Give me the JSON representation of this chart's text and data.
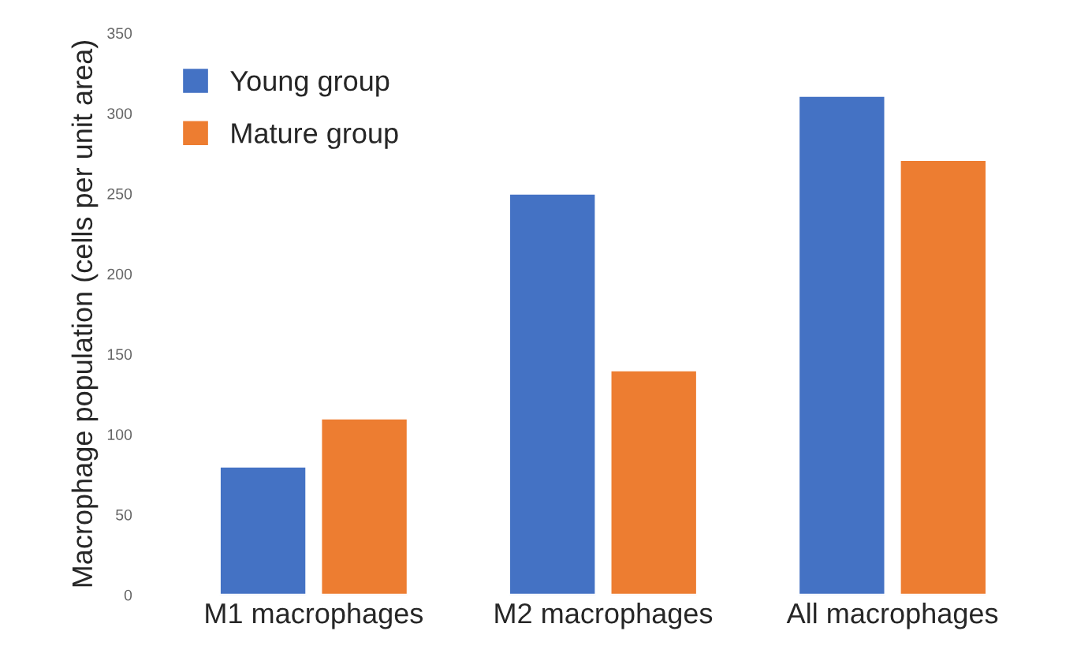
{
  "chart_data": {
    "type": "bar",
    "ylabel": "Macrophage population (cells per unit area)",
    "categories": [
      "M1 macrophages",
      "M2 macrophages",
      "All macrophages"
    ],
    "series": [
      {
        "name": "Young group",
        "color": "#4472c4",
        "values": [
          80,
          250,
          311
        ]
      },
      {
        "name": "Mature group",
        "color": "#ed7d31",
        "values": [
          110,
          140,
          271
        ]
      }
    ],
    "ylim": [
      0,
      350
    ],
    "yticks": [
      0,
      50,
      100,
      150,
      200,
      250,
      300,
      350
    ],
    "grid": false,
    "legend": "top left"
  }
}
